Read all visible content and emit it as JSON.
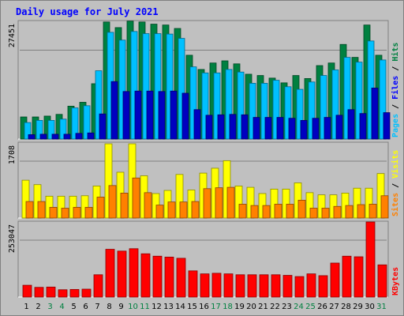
{
  "title": "Daily usage for July 2021",
  "colors": {
    "hits": "#008040",
    "files": "#00c0ff",
    "pages": "#0000c0",
    "visits": "#ffff00",
    "sites": "#ff8000",
    "kbytes": "#ff0000",
    "panel_bg": "#c0c0c0",
    "grid": "#808080",
    "weekday_label": "#000000",
    "weekend_label": "#008040"
  },
  "chart_data": [
    {
      "type": "bar",
      "panel": "hits-files-pages",
      "right_labels": [
        {
          "text": "Pages",
          "color": "#00c0ff"
        },
        {
          "text": " / ",
          "color": "#000000"
        },
        {
          "text": "Files",
          "color": "#0000ff"
        },
        {
          "text": " / ",
          "color": "#000000"
        },
        {
          "text": "Hits",
          "color": "#008040"
        }
      ],
      "max_label": "27451",
      "ylim": [
        0,
        27451
      ],
      "categories": [
        "1",
        "2",
        "3",
        "4",
        "5",
        "6",
        "7",
        "8",
        "9",
        "10",
        "11",
        "12",
        "13",
        "14",
        "15",
        "16",
        "17",
        "18",
        "19",
        "20",
        "21",
        "22",
        "23",
        "24",
        "25",
        "26",
        "27",
        "28",
        "29",
        "30",
        "31"
      ],
      "series": [
        {
          "name": "Hits",
          "values": [
            5300,
            5300,
            5500,
            5900,
            7800,
            8700,
            13000,
            27300,
            26000,
            27500,
            27300,
            26800,
            26600,
            25800,
            19600,
            16300,
            17800,
            18300,
            17600,
            15200,
            14900,
            14300,
            13200,
            14900,
            14200,
            17200,
            17800,
            22100,
            19100,
            26600,
            19600
          ]
        },
        {
          "name": "Files",
          "values": [
            4000,
            4500,
            4500,
            4800,
            7400,
            7900,
            16000,
            24900,
            23100,
            25100,
            24600,
            24600,
            24500,
            23500,
            16900,
            15500,
            15500,
            16300,
            15700,
            13100,
            13100,
            13800,
            12300,
            11700,
            13400,
            14900,
            16200,
            19100,
            18000,
            22900,
            18500
          ]
        },
        {
          "name": "Pages",
          "values": [
            1200,
            1300,
            1300,
            1300,
            1500,
            1600,
            6000,
            13500,
            11200,
            11300,
            11300,
            11200,
            11300,
            10800,
            7000,
            5700,
            5800,
            5900,
            5800,
            5200,
            5200,
            5200,
            5000,
            4500,
            5000,
            5200,
            5700,
            7000,
            6100,
            12000,
            6300
          ]
        }
      ]
    },
    {
      "type": "bar",
      "panel": "visits-sites",
      "right_labels": [
        {
          "text": "Sites",
          "color": "#ff8000"
        },
        {
          "text": " / ",
          "color": "#000000"
        },
        {
          "text": "Visits",
          "color": "#ffff00"
        }
      ],
      "max_label": "1708",
      "ylim": [
        0,
        1708
      ],
      "categories": [
        "1",
        "2",
        "3",
        "4",
        "5",
        "6",
        "7",
        "8",
        "9",
        "10",
        "11",
        "12",
        "13",
        "14",
        "15",
        "16",
        "17",
        "18",
        "19",
        "20",
        "21",
        "22",
        "23",
        "24",
        "25",
        "26",
        "27",
        "28",
        "29",
        "30",
        "31"
      ],
      "series": [
        {
          "name": "Visits",
          "values": [
            870,
            770,
            510,
            510,
            510,
            520,
            740,
            1690,
            1050,
            1690,
            970,
            570,
            640,
            1000,
            650,
            1030,
            1140,
            1310,
            740,
            710,
            570,
            670,
            670,
            810,
            590,
            540,
            540,
            580,
            690,
            690,
            1020
          ]
        },
        {
          "name": "Sites",
          "values": [
            390,
            390,
            260,
            240,
            260,
            260,
            490,
            750,
            580,
            920,
            590,
            310,
            380,
            380,
            390,
            680,
            700,
            710,
            330,
            300,
            300,
            330,
            330,
            420,
            240,
            240,
            280,
            300,
            320,
            330,
            520
          ]
        }
      ]
    },
    {
      "type": "bar",
      "panel": "kbytes",
      "right_labels": [
        {
          "text": "KBytes",
          "color": "#ff0000"
        }
      ],
      "max_label": "253047",
      "ylim": [
        0,
        253047
      ],
      "categories": [
        "1",
        "2",
        "3",
        "4",
        "5",
        "6",
        "7",
        "8",
        "9",
        "10",
        "11",
        "12",
        "13",
        "14",
        "15",
        "16",
        "17",
        "18",
        "19",
        "20",
        "21",
        "22",
        "23",
        "24",
        "25",
        "26",
        "27",
        "28",
        "29",
        "30",
        "31"
      ],
      "series": [
        {
          "name": "KBytes",
          "values": [
            42000,
            35000,
            36000,
            27000,
            28000,
            29000,
            77000,
            162000,
            156000,
            164000,
            147000,
            139000,
            136000,
            132000,
            90000,
            80000,
            82000,
            80000,
            77000,
            77000,
            77000,
            77000,
            75000,
            71000,
            80000,
            74000,
            116000,
            139000,
            137000,
            253000,
            110000
          ]
        }
      ]
    }
  ],
  "x_labels": [
    {
      "text": "1",
      "weekend": false
    },
    {
      "text": "2",
      "weekend": false
    },
    {
      "text": "3",
      "weekend": true
    },
    {
      "text": "4",
      "weekend": true
    },
    {
      "text": "5",
      "weekend": false
    },
    {
      "text": "6",
      "weekend": false
    },
    {
      "text": "7",
      "weekend": false
    },
    {
      "text": "8",
      "weekend": false
    },
    {
      "text": "9",
      "weekend": false
    },
    {
      "text": "10",
      "weekend": true
    },
    {
      "text": "11",
      "weekend": true
    },
    {
      "text": "12",
      "weekend": false
    },
    {
      "text": "13",
      "weekend": false
    },
    {
      "text": "14",
      "weekend": false
    },
    {
      "text": "15",
      "weekend": false
    },
    {
      "text": "16",
      "weekend": false
    },
    {
      "text": "17",
      "weekend": true
    },
    {
      "text": "18",
      "weekend": true
    },
    {
      "text": "19",
      "weekend": false
    },
    {
      "text": "20",
      "weekend": false
    },
    {
      "text": "21",
      "weekend": false
    },
    {
      "text": "22",
      "weekend": false
    },
    {
      "text": "23",
      "weekend": false
    },
    {
      "text": "24",
      "weekend": true
    },
    {
      "text": "25",
      "weekend": true
    },
    {
      "text": "26",
      "weekend": false
    },
    {
      "text": "27",
      "weekend": false
    },
    {
      "text": "28",
      "weekend": false
    },
    {
      "text": "29",
      "weekend": false
    },
    {
      "text": "30",
      "weekend": false
    },
    {
      "text": "31",
      "weekend": true
    }
  ]
}
